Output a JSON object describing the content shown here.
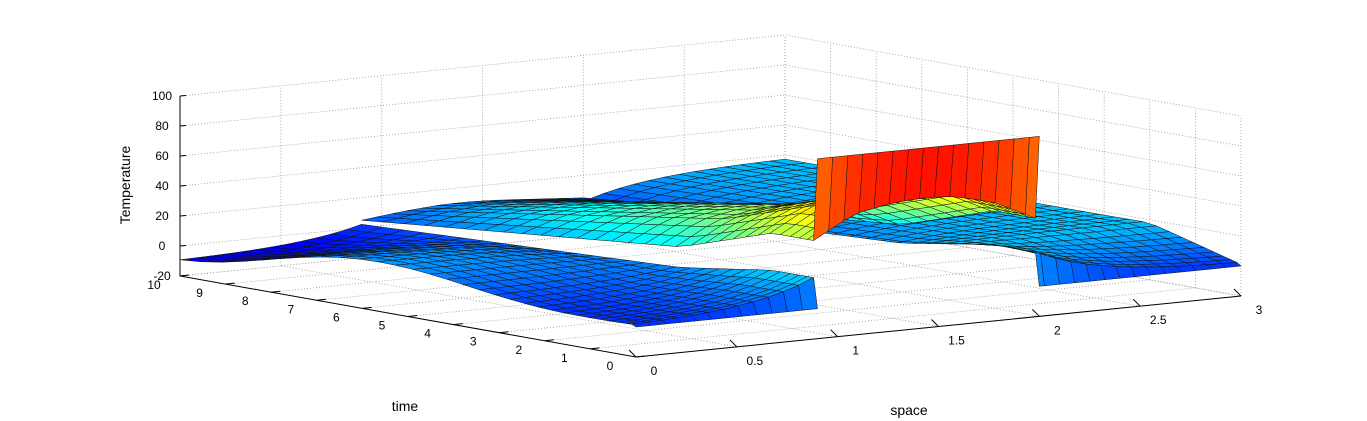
{
  "chart_data": {
    "type": "surface",
    "title": "",
    "xlabel": "space",
    "ylabel": "time",
    "zlabel": "Temperature",
    "xlim": [
      0,
      3
    ],
    "ylim": [
      0,
      10
    ],
    "zlim": [
      -20,
      100
    ],
    "x_ticks": [
      "0",
      "0.5",
      "1",
      "1.5",
      "2",
      "2.5",
      "3"
    ],
    "y_ticks": [
      "0",
      "1",
      "2",
      "3",
      "4",
      "5",
      "6",
      "7",
      "8",
      "9",
      "10"
    ],
    "z_ticks": [
      "-20",
      "0",
      "20",
      "40",
      "60",
      "80",
      "100"
    ],
    "grid": true,
    "colormap": "jet",
    "initial_condition": [
      {
        "x_from": 0,
        "x_to": 0.9,
        "temperature": 0
      },
      {
        "x_from": 0.9,
        "x_to": 2.0,
        "temperature": 100
      },
      {
        "x_from": 2.0,
        "x_to": 3.0,
        "temperature": 0
      }
    ],
    "heated_interval_profile": {
      "x": [
        0.9,
        1.1,
        1.3,
        1.45,
        1.6,
        1.8,
        2.0
      ],
      "temperature_at_time": [
        {
          "time": 0,
          "values": [
            100,
            100,
            100,
            100,
            100,
            100,
            100
          ]
        },
        {
          "time": 1,
          "values": [
            45,
            60,
            65,
            66,
            65,
            58,
            45
          ]
        },
        {
          "time": 3,
          "values": [
            25,
            40,
            45,
            46,
            44,
            38,
            25
          ]
        },
        {
          "time": 10,
          "values": [
            5,
            8,
            10,
            10,
            9,
            7,
            5
          ]
        }
      ]
    },
    "boundary_edges": {
      "x0": {
        "temperature_range": [
          -10,
          25
        ]
      },
      "x3": {
        "temperature_range": [
          0,
          30
        ]
      }
    }
  }
}
